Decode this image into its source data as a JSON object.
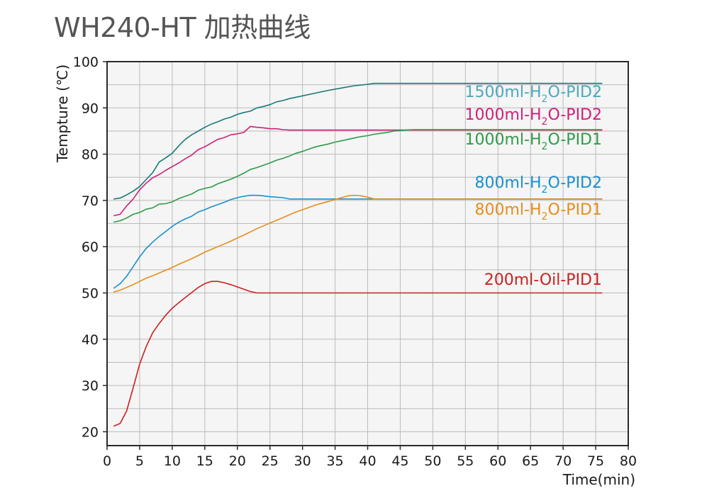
{
  "chart_data": {
    "type": "line",
    "title": "WH240-HT 加热曲线",
    "xlabel": "Time(min)",
    "ylabel": "Tempture (℃)",
    "xlim": [
      0,
      80
    ],
    "ylim": [
      17,
      100
    ],
    "xticks": [
      0,
      5,
      10,
      15,
      20,
      25,
      30,
      35,
      40,
      45,
      50,
      55,
      60,
      65,
      70,
      75,
      80
    ],
    "yticks": [
      20,
      30,
      40,
      50,
      60,
      70,
      80,
      90,
      100
    ],
    "grid": true,
    "series": [
      {
        "name": "1500ml-H2O-PID2",
        "label_parts": [
          "1500ml-H",
          "2",
          "O-PID2"
        ],
        "color": "#1a7a78",
        "label_color": "#4ba8bd",
        "x": [
          1,
          2,
          3,
          4,
          5,
          6,
          7,
          8,
          9,
          10,
          11,
          12,
          13,
          14,
          15,
          16,
          17,
          18,
          19,
          20,
          21,
          22,
          23,
          24,
          25,
          26,
          27,
          28,
          30,
          32,
          34,
          36,
          38,
          40,
          41,
          45,
          50,
          60,
          70,
          76
        ],
        "y": [
          70.3,
          70.5,
          71.2,
          72,
          73,
          74.5,
          76,
          78.3,
          79.2,
          80.2,
          81.8,
          83.2,
          84.2,
          85,
          85.8,
          86.5,
          87,
          87.6,
          88,
          88.6,
          89,
          89.3,
          90,
          90.3,
          90.7,
          91.3,
          91.6,
          92,
          92.6,
          93.2,
          93.8,
          94.3,
          94.8,
          95.1,
          95.3,
          95.3,
          95.3,
          95.3,
          95.3,
          95.3
        ]
      },
      {
        "name": "1000ml-H2O-PID2",
        "label_parts": [
          "1000ml-H",
          "2",
          "O-PID2"
        ],
        "color": "#d11f7a",
        "label_color": "#d11f7a",
        "x": [
          1,
          2,
          3,
          4,
          5,
          6,
          7,
          8,
          9,
          10,
          11,
          12,
          13,
          14,
          15,
          16,
          17,
          18,
          19,
          20,
          21,
          22,
          23,
          24,
          25,
          26,
          27,
          28,
          30,
          35,
          40,
          50,
          60,
          70,
          76
        ],
        "y": [
          66.7,
          67,
          68.8,
          70.3,
          72.3,
          73.7,
          74.9,
          75.6,
          76.5,
          77.3,
          78.1,
          79,
          79.8,
          81,
          81.6,
          82.4,
          83.2,
          83.6,
          84.2,
          84.4,
          84.7,
          86,
          85.8,
          85.7,
          85.5,
          85.5,
          85.3,
          85.2,
          85.2,
          85.2,
          85.2,
          85.2,
          85.2,
          85.2,
          85.2
        ]
      },
      {
        "name": "1000ml-H2O-PID1",
        "label_parts": [
          "1000ml-H",
          "2",
          "O-PID1"
        ],
        "color": "#2f9a4a",
        "label_color": "#2f9a4a",
        "x": [
          1,
          2,
          3,
          4,
          5,
          6,
          7,
          8,
          9,
          10,
          11,
          12,
          13,
          14,
          15,
          16,
          17,
          18,
          19,
          20,
          21,
          22,
          23,
          24,
          25,
          26,
          27,
          28,
          29,
          30,
          31,
          32,
          33,
          34,
          35,
          36,
          37,
          38,
          39,
          40,
          41,
          42,
          43,
          44,
          45,
          46,
          47,
          50,
          60,
          70,
          76
        ],
        "y": [
          65.3,
          65.6,
          66.2,
          67,
          67.4,
          68.1,
          68.4,
          69.2,
          69.3,
          69.7,
          70.4,
          70.9,
          71.4,
          72.2,
          72.6,
          72.9,
          73.6,
          74.1,
          74.6,
          75.2,
          75.9,
          76.7,
          77.1,
          77.6,
          78.1,
          78.7,
          79.1,
          79.6,
          80.2,
          80.6,
          81.1,
          81.6,
          81.9,
          82.2,
          82.6,
          82.9,
          83.2,
          83.5,
          83.8,
          84,
          84.3,
          84.5,
          84.7,
          85,
          85.1,
          85.2,
          85.3,
          85.3,
          85.3,
          85.3,
          85.3
        ]
      },
      {
        "name": "800ml-H2O-PID2",
        "label_parts": [
          "800ml-H",
          "2",
          "O-PID2"
        ],
        "color": "#1a8fcf",
        "label_color": "#1a8fcf",
        "x": [
          1,
          2,
          3,
          4,
          5,
          6,
          7,
          8,
          9,
          10,
          11,
          12,
          13,
          14,
          15,
          16,
          17,
          18,
          19,
          20,
          21,
          22,
          23,
          24,
          25,
          26,
          27,
          28,
          30,
          40,
          50,
          60,
          70,
          76
        ],
        "y": [
          51,
          52,
          53.6,
          55.7,
          57.8,
          59.6,
          61,
          62.2,
          63.3,
          64.4,
          65.3,
          66,
          66.6,
          67.5,
          68,
          68.6,
          69.1,
          69.6,
          70.2,
          70.6,
          70.9,
          71.1,
          71.1,
          71,
          70.8,
          70.7,
          70.6,
          70.3,
          70.3,
          70.3,
          70.3,
          70.3,
          70.3,
          70.3
        ]
      },
      {
        "name": "800ml-H2O-PID1",
        "label_parts": [
          "800ml-H",
          "2",
          "O-PID1"
        ],
        "color": "#e88c1c",
        "label_color": "#e88c1c",
        "x": [
          1,
          2,
          3,
          4,
          5,
          6,
          7,
          8,
          9,
          10,
          11,
          12,
          13,
          14,
          15,
          16,
          17,
          18,
          19,
          20,
          21,
          22,
          23,
          24,
          25,
          26,
          27,
          28,
          29,
          30,
          31,
          32,
          33,
          34,
          35,
          36,
          37,
          38,
          39,
          40,
          41,
          42,
          45,
          50,
          60,
          70,
          76
        ],
        "y": [
          50.2,
          50.6,
          51.2,
          51.8,
          52.5,
          53.2,
          53.7,
          54.3,
          54.9,
          55.5,
          56.2,
          56.8,
          57.4,
          58.1,
          58.8,
          59.4,
          60,
          60.6,
          61.2,
          61.9,
          62.5,
          63.2,
          63.9,
          64.5,
          65.1,
          65.7,
          66.3,
          66.9,
          67.5,
          68,
          68.5,
          69,
          69.4,
          69.8,
          70.2,
          70.6,
          71,
          71.1,
          71,
          70.7,
          70.3,
          70.3,
          70.3,
          70.3,
          70.3,
          70.3,
          70.3
        ]
      },
      {
        "name": "200ml-Oil-PID1",
        "label_parts": [
          "200ml-Oil-PID1",
          "",
          ""
        ],
        "color": "#cc1f1f",
        "label_color": "#cc1f1f",
        "x": [
          1,
          2,
          3,
          4,
          5,
          6,
          7,
          8,
          9,
          10,
          11,
          12,
          13,
          14,
          15,
          16,
          17,
          18,
          19,
          20,
          21,
          22,
          23,
          30,
          40,
          50,
          60,
          70,
          76
        ],
        "y": [
          21.2,
          21.8,
          24.5,
          29.5,
          34.6,
          38.4,
          41.4,
          43.4,
          45.2,
          46.7,
          47.9,
          49,
          50.1,
          51.2,
          52,
          52.5,
          52.5,
          52.2,
          51.8,
          51.3,
          50.8,
          50.3,
          50,
          50,
          50,
          50,
          50,
          50,
          50
        ]
      }
    ]
  }
}
